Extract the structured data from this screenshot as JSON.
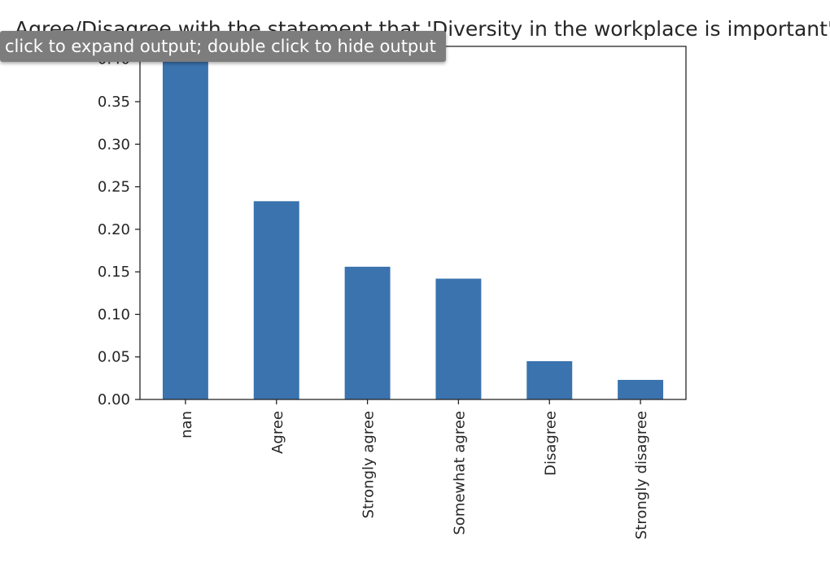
{
  "output_toggle": {
    "tooltip_text": "click to expand output; double click to hide output"
  },
  "chart_data": {
    "type": "bar",
    "title": "Agree/Disagree with the statement that 'Diversity in the workplace is important'",
    "categories": [
      "nan",
      "Agree",
      "Strongly agree",
      "Somewhat agree",
      "Disagree",
      "Strongly disagree"
    ],
    "values": [
      0.425,
      0.233,
      0.156,
      0.142,
      0.045,
      0.023
    ],
    "xlabel": "",
    "ylabel": "",
    "ylim": [
      0,
      0.415
    ],
    "yticks": [
      0.0,
      0.05,
      0.1,
      0.15,
      0.2,
      0.25,
      0.3,
      0.35,
      0.4
    ],
    "ytick_labels": [
      "0.00",
      "0.05",
      "0.10",
      "0.15",
      "0.20",
      "0.25",
      "0.30",
      "0.35",
      "0.40"
    ],
    "grid": false,
    "bar_color": "#3a73ae"
  }
}
